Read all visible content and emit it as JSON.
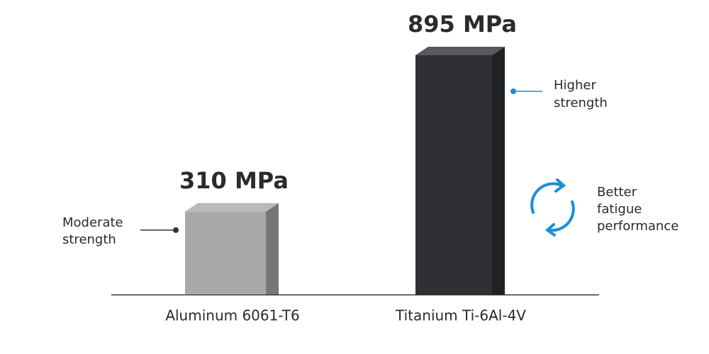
{
  "chart_data": {
    "type": "bar",
    "categories": [
      "Aluminum 6061-T6",
      "Titanium Ti-6Al-4V"
    ],
    "values": [
      310,
      895
    ],
    "value_labels": [
      "310 MPa",
      "895 MPa"
    ],
    "colors": [
      "#a9a9a9",
      "#2f3033"
    ],
    "annotations": [
      [
        "Moderate",
        "strength"
      ],
      [
        "Higher",
        "strength"
      ],
      [
        "Better",
        "fatigue",
        "performance"
      ]
    ]
  }
}
